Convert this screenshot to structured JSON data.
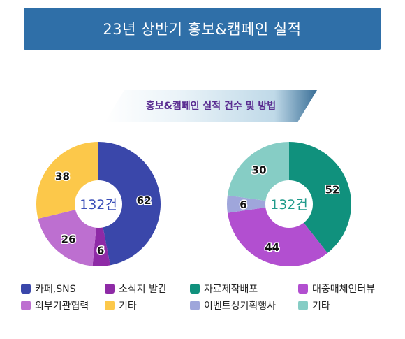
{
  "header": {
    "title": "23년 상반기 홍보&캠페인 실적"
  },
  "subtitle": "홍보&캠페인 실적 건수 및 방법",
  "chart_data": [
    {
      "type": "pie",
      "style": "donut",
      "center_label": "132건",
      "center_color": "#3b4fb8",
      "slices": [
        {
          "label": "카페,SNS",
          "value": 62,
          "color": "#3a47aa"
        },
        {
          "label": "소식지 발간",
          "value": 6,
          "color": "#8e2aa6"
        },
        {
          "label": "외부기관협력",
          "value": 26,
          "color": "#bd6fd0"
        },
        {
          "label": "기타",
          "value": 38,
          "color": "#fcc84a"
        }
      ]
    },
    {
      "type": "pie",
      "style": "donut",
      "center_label": "132건",
      "center_color": "#1f9a8a",
      "slices": [
        {
          "label": "자료제작배포",
          "value": 52,
          "color": "#10917d"
        },
        {
          "label": "대중매체인터뷰",
          "value": 44,
          "color": "#b24fd0"
        },
        {
          "label": "이벤트성기획행사",
          "value": 6,
          "color": "#9fa6db"
        },
        {
          "label": "기타",
          "value": 30,
          "color": "#86cdc5"
        }
      ]
    }
  ]
}
